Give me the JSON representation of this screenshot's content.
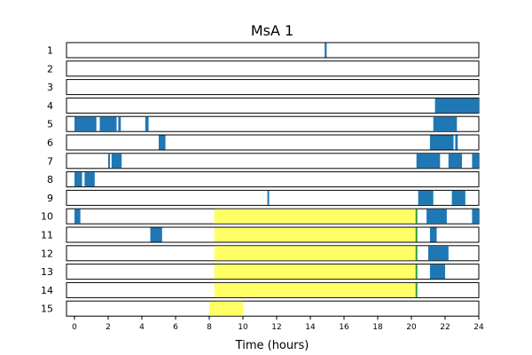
{
  "chart_data": {
    "type": "bar",
    "title": "MsA 1",
    "xlabel": "Time (hours)",
    "ylabel": "",
    "xlim": [
      0,
      24
    ],
    "x_ticks": [
      0,
      2,
      4,
      6,
      8,
      10,
      12,
      14,
      16,
      18,
      20,
      22,
      24
    ],
    "rows": [
      "1",
      "2",
      "3",
      "4",
      "5",
      "6",
      "7",
      "8",
      "9",
      "10",
      "11",
      "12",
      "13",
      "14",
      "15"
    ],
    "grid": false,
    "colors": {
      "activity": "#1f77b4",
      "highlight": "#ffff66",
      "highlight_line": "#2ca02c"
    },
    "series": [
      {
        "row": "1",
        "intervals": [
          [
            14.85,
            14.97
          ]
        ]
      },
      {
        "row": "2",
        "intervals": []
      },
      {
        "row": "3",
        "intervals": []
      },
      {
        "row": "4",
        "intervals": [
          [
            21.4,
            24.0
          ]
        ]
      },
      {
        "row": "5",
        "intervals": [
          [
            0.0,
            1.3
          ],
          [
            1.5,
            2.5
          ],
          [
            2.6,
            2.75
          ],
          [
            4.2,
            4.4
          ],
          [
            21.3,
            22.7
          ]
        ]
      },
      {
        "row": "6",
        "intervals": [
          [
            5.0,
            5.4
          ],
          [
            21.1,
            22.5
          ],
          [
            22.6,
            22.75
          ]
        ]
      },
      {
        "row": "7",
        "intervals": [
          [
            2.0,
            2.1
          ],
          [
            2.2,
            2.8
          ],
          [
            20.3,
            21.7
          ],
          [
            22.2,
            23.0
          ],
          [
            23.6,
            24.0
          ]
        ]
      },
      {
        "row": "8",
        "intervals": [
          [
            0.0,
            0.45
          ],
          [
            0.6,
            1.2
          ]
        ]
      },
      {
        "row": "9",
        "intervals": [
          [
            11.45,
            11.55
          ],
          [
            20.4,
            21.3
          ],
          [
            22.4,
            23.2
          ]
        ]
      },
      {
        "row": "10",
        "intervals": [
          [
            0.0,
            0.35
          ],
          [
            20.9,
            22.1
          ],
          [
            23.6,
            24.0
          ]
        ]
      },
      {
        "row": "11",
        "intervals": [
          [
            4.5,
            5.2
          ],
          [
            21.1,
            21.5
          ]
        ]
      },
      {
        "row": "12",
        "intervals": [
          [
            21.0,
            22.2
          ]
        ]
      },
      {
        "row": "13",
        "intervals": [
          [
            21.1,
            22.0
          ]
        ]
      },
      {
        "row": "14",
        "intervals": []
      },
      {
        "row": "15",
        "intervals": []
      }
    ],
    "highlights": [
      {
        "row": "10",
        "start": 8.3,
        "end": 20.3,
        "end_line": true
      },
      {
        "row": "11",
        "start": 8.3,
        "end": 20.3,
        "end_line": true
      },
      {
        "row": "12",
        "start": 8.3,
        "end": 20.3,
        "end_line": true
      },
      {
        "row": "13",
        "start": 8.3,
        "end": 20.3,
        "end_line": true
      },
      {
        "row": "14",
        "start": 8.3,
        "end": 20.3,
        "end_line": true
      },
      {
        "row": "15",
        "start": 8.0,
        "end": 10.0,
        "end_line": false
      }
    ]
  }
}
